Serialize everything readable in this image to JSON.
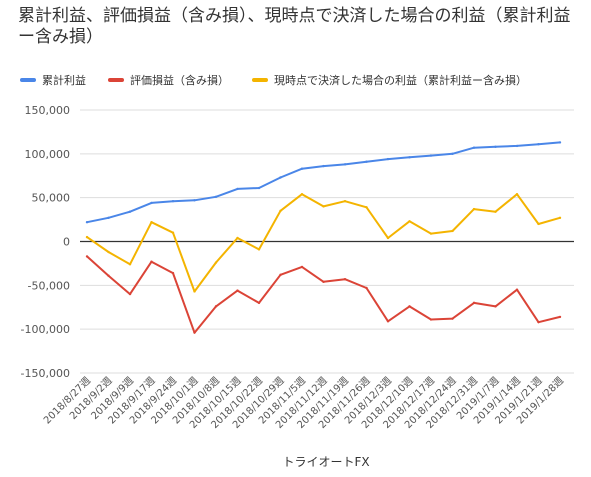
{
  "chart_data": {
    "type": "line",
    "title": "累計利益、評価損益（含み損）、現時点で決済した場合の利益（累計利益ー含み損）",
    "xlabel": "トライオートFX",
    "ylabel": "",
    "ylim": [
      -150000,
      150000
    ],
    "y_ticks": [
      "150,000",
      "100,000",
      "50,000",
      "0",
      "-50,000",
      "-100,000",
      "-150,000"
    ],
    "y_tick_values": [
      150000,
      100000,
      50000,
      0,
      -50000,
      -100000,
      -150000
    ],
    "grid": true,
    "legend_position": "top",
    "categories": [
      "2018/8/27週",
      "2018/9/2週",
      "2018/9/9週",
      "2018/9/17週",
      "2018/9/24週",
      "2018/10/1週",
      "2018/10/8週",
      "2018/10/15週",
      "2018/10/22週",
      "2018/10/29週",
      "2018/11/5週",
      "2018/11/12週",
      "2018/11/19週",
      "2018/11/26週",
      "2018/12/3週",
      "2018/12/10週",
      "2018/12/17週",
      "2018/12/24週",
      "2018/12/31週",
      "2019/1/7週",
      "2019/1/14週",
      "2019/1/21週",
      "2019/1/28週"
    ],
    "series": [
      {
        "name": "累計利益",
        "color": "#4a86e8",
        "values": [
          22000,
          27000,
          34000,
          44000,
          46000,
          47000,
          51000,
          60000,
          61000,
          73000,
          83000,
          86000,
          88000,
          91000,
          94000,
          96000,
          98000,
          100000,
          107000,
          108000,
          109000,
          111000,
          113000
        ]
      },
      {
        "name": "評価損益（含み損）",
        "color": "#db4437",
        "values": [
          -17000,
          -39000,
          -60000,
          -23000,
          -36000,
          -104000,
          -74000,
          -56000,
          -70000,
          -38000,
          -29000,
          -46000,
          -43000,
          -53000,
          -91000,
          -74000,
          -89000,
          -88000,
          -70000,
          -74000,
          -55000,
          -92000,
          -86000
        ]
      },
      {
        "name": "現時点で決済した場合の利益（累計利益ー含み損）",
        "color": "#f4b400",
        "values": [
          5000,
          -12000,
          -26000,
          22000,
          10000,
          -57000,
          -24000,
          4000,
          -9000,
          35000,
          54000,
          40000,
          46000,
          39000,
          4000,
          23000,
          9000,
          12000,
          37000,
          34000,
          54000,
          20000,
          27000
        ]
      }
    ]
  }
}
